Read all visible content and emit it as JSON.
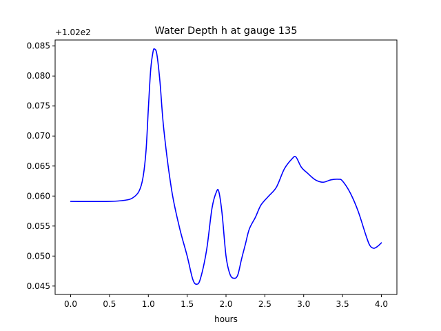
{
  "chart_data": {
    "type": "line",
    "title": "Water Depth h at gauge 135",
    "xlabel": "hours",
    "ylabel": "",
    "y_offset_text": "+1.02e2",
    "y_offset": 102,
    "xlim": [
      -0.2,
      4.2
    ],
    "ylim": [
      0.0436,
      0.086
    ],
    "x_ticks": [
      0.0,
      0.5,
      1.0,
      1.5,
      2.0,
      2.5,
      3.0,
      3.5,
      4.0
    ],
    "x_tick_labels": [
      "0.0",
      "0.5",
      "1.0",
      "1.5",
      "2.0",
      "2.5",
      "3.0",
      "3.5",
      "4.0"
    ],
    "y_ticks": [
      0.045,
      0.05,
      0.055,
      0.06,
      0.065,
      0.07,
      0.075,
      0.08,
      0.085
    ],
    "y_tick_labels": [
      "0.045",
      "0.050",
      "0.055",
      "0.060",
      "0.065",
      "0.070",
      "0.075",
      "0.080",
      "0.085"
    ],
    "grid": false,
    "series": [
      {
        "color": "#0000ff",
        "x": [
          0.0,
          0.5,
          0.7,
          0.8,
          0.88,
          0.93,
          0.97,
          1.0,
          1.03,
          1.06,
          1.08,
          1.11,
          1.15,
          1.2,
          1.3,
          1.4,
          1.5,
          1.57,
          1.62,
          1.67,
          1.75,
          1.82,
          1.88,
          1.91,
          1.95,
          2.0,
          2.05,
          2.1,
          2.15,
          2.2,
          2.25,
          2.3,
          2.38,
          2.45,
          2.55,
          2.65,
          2.75,
          2.85,
          2.9,
          2.97,
          3.05,
          3.15,
          3.25,
          3.35,
          3.45,
          3.5,
          3.6,
          3.7,
          3.8,
          3.85,
          3.9,
          3.95,
          4.0
        ],
        "y": [
          0.0591,
          0.0591,
          0.0593,
          0.0597,
          0.0608,
          0.063,
          0.0675,
          0.0745,
          0.081,
          0.084,
          0.0845,
          0.0836,
          0.079,
          0.071,
          0.061,
          0.0548,
          0.05,
          0.0462,
          0.0453,
          0.0462,
          0.051,
          0.058,
          0.0608,
          0.0606,
          0.057,
          0.05,
          0.047,
          0.0463,
          0.0468,
          0.0495,
          0.052,
          0.0545,
          0.0565,
          0.0585,
          0.06,
          0.0615,
          0.0645,
          0.0662,
          0.0665,
          0.0648,
          0.0638,
          0.0627,
          0.0623,
          0.0627,
          0.0628,
          0.0625,
          0.0605,
          0.0575,
          0.0535,
          0.0518,
          0.0513,
          0.0516,
          0.0522
        ]
      }
    ]
  }
}
